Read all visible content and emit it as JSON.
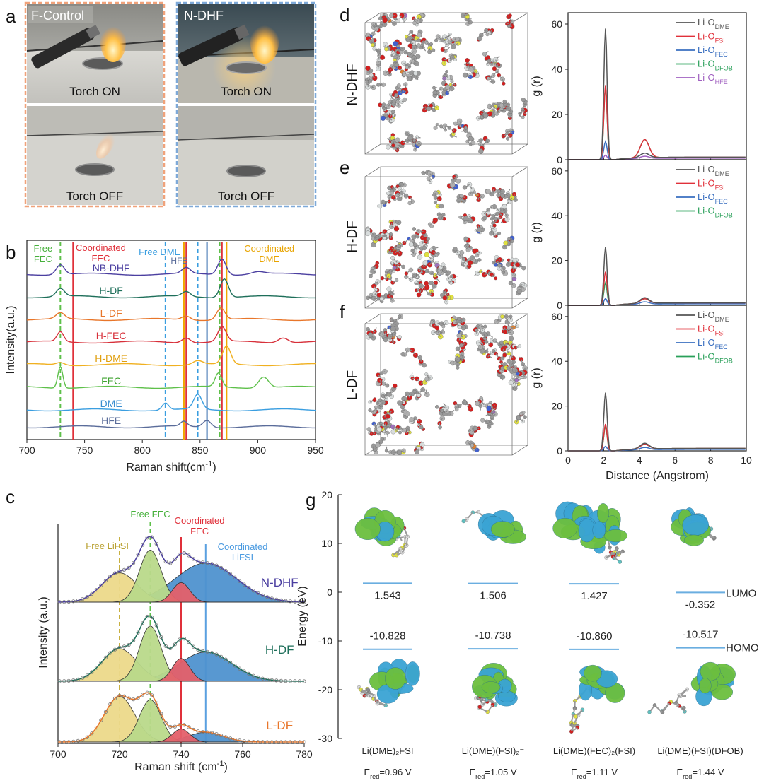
{
  "panels": {
    "a": "a",
    "b": "b",
    "c": "c",
    "d": "d",
    "e": "e",
    "f": "f",
    "g": "g"
  },
  "panel_a": {
    "left_title": "F-Control",
    "right_title": "N-DHF",
    "on_caption": "Torch ON",
    "off_caption": "Torch OFF",
    "left_border_color": "#f0a27a",
    "right_border_color": "#7ea9d8"
  },
  "panel_b": {
    "ylabel": "Intensity(a.u.)",
    "xlabel_main": "Raman shift(cm",
    "xlabel_sup": "-1",
    "xlabel_end": ")",
    "annotations": {
      "free_fec": [
        "Free",
        "FEC"
      ],
      "coord_fec": [
        "Coordinated",
        "FEC"
      ],
      "free_dme": "Free DME",
      "hfe": "HFE",
      "coord_dme": [
        "Coordinated",
        "DME"
      ]
    }
  },
  "panel_c": {
    "ylabel": "Intensity (a.u.)",
    "xlabel_main": "Raman shift (cm",
    "xlabel_sup": "-1",
    "xlabel_end": ")",
    "annotations": {
      "free_lifsi": "Free LiFSI",
      "free_fec": "Free FEC",
      "coord_fec": [
        "Coordinated",
        "FEC"
      ],
      "coord_lifsi": [
        "Coordinated",
        "LiFSI"
      ]
    },
    "component_colors": {
      "free_lifsi": "#ecd98a",
      "free_fec": "#b9d98a",
      "coord_fec": "#e4606a",
      "coord_lifsi": "#4f92cf"
    }
  },
  "panel_md": {
    "labels": [
      "N-DHF",
      "H-DF",
      "L-DF"
    ]
  },
  "panel_rdf": {
    "ylabel": "g (r)",
    "xlabel": "Distance (Angstrom)",
    "legend_prefix": "Li-O",
    "subs": {
      "dme": "DME",
      "fsi": "FSI",
      "fec": "FEC",
      "dfob": "DFOB",
      "hfe": "HFE"
    }
  },
  "panel_g": {
    "ylabel": "Energy (eV)",
    "lumo_label": "LUMO",
    "homo_label": "HOMO",
    "complexes": [
      {
        "name": "Li(DME)₂FSI",
        "lumo": "1.543",
        "homo": "-10.828",
        "ered_prefix": "E",
        "ered_sub": "red",
        "ered_val": "=0.96 V"
      },
      {
        "name": "Li(DME)(FSI)₂⁻",
        "lumo": "1.506",
        "homo": "-10.738",
        "ered_prefix": "E",
        "ered_sub": "red",
        "ered_val": "=1.05 V"
      },
      {
        "name": "Li(DME)(FEC)₂(FSI)",
        "lumo": "1.427",
        "homo": "-10.860",
        "ered_prefix": "E",
        "ered_sub": "red",
        "ered_val": "=1.11 V"
      },
      {
        "name": "Li(DME)(FSI)(DFOB)",
        "lumo": "-0.352",
        "homo": "-10.517",
        "ered_prefix": "E",
        "ered_sub": "red",
        "ered_val": "=1.44 V"
      }
    ],
    "orbital_colors": {
      "positive": "#3aa4d4",
      "negative": "#6cbf3f"
    }
  },
  "chart_data": [
    {
      "id": "b",
      "type": "line",
      "xlabel": "Raman shift(cm-1)",
      "ylabel": "Intensity(a.u.)",
      "xlim": [
        700,
        950
      ],
      "xticks": [
        700,
        750,
        800,
        850,
        900,
        950
      ],
      "vlines": [
        {
          "x": 729,
          "color": "#5ec04a",
          "style": "dashed"
        },
        {
          "x": 740,
          "color": "#e0303a",
          "style": "solid"
        },
        {
          "x": 820,
          "color": "#3a9ee0",
          "style": "dashed"
        },
        {
          "x": 836,
          "color": "#f0a800",
          "style": "solid"
        },
        {
          "x": 838,
          "color": "#e0303a",
          "style": "solid"
        },
        {
          "x": 848,
          "color": "#3a9ee0",
          "style": "dashed"
        },
        {
          "x": 856,
          "color": "#3a6fb0",
          "style": "solid"
        },
        {
          "x": 867,
          "color": "#5ec04a",
          "style": "dashed"
        },
        {
          "x": 869,
          "color": "#e0303a",
          "style": "solid"
        },
        {
          "x": 873,
          "color": "#f0a800",
          "style": "solid"
        }
      ],
      "series": [
        {
          "name": "NB-DHF",
          "color": "#4b3fa0",
          "label_color": "#4b3fa0",
          "peaks": [
            [
              729,
              1.0,
              5
            ],
            [
              838,
              0.6,
              5
            ],
            [
              869,
              1.6,
              5
            ],
            [
              900,
              0.25,
              8
            ]
          ]
        },
        {
          "name": "H-DF",
          "color": "#1e6f5a",
          "label_color": "#1e6f5a",
          "peaks": [
            [
              729,
              0.8,
              5
            ],
            [
              838,
              0.5,
              5
            ],
            [
              871,
              1.9,
              5
            ]
          ]
        },
        {
          "name": "L-DF",
          "color": "#e8762a",
          "label_color": "#e8762a",
          "peaks": [
            [
              729,
              0.6,
              5
            ],
            [
              838,
              0.4,
              5
            ],
            [
              868,
              1.2,
              5
            ]
          ]
        },
        {
          "name": "H-FEC",
          "color": "#d7303a",
          "label_color": "#d7303a",
          "peaks": [
            [
              729,
              1.0,
              4
            ],
            [
              838,
              0.5,
              5
            ],
            [
              869,
              1.5,
              5
            ],
            [
              922,
              0.5,
              6
            ]
          ]
        },
        {
          "name": "H-DME",
          "color": "#f0b020",
          "label_color": "#e0a010",
          "peaks": [
            [
              729,
              0.25,
              5
            ],
            [
              848,
              0.4,
              6
            ],
            [
              873,
              1.8,
              5
            ]
          ]
        },
        {
          "name": "FEC",
          "color": "#5ec04a",
          "label_color": "#3fa330",
          "peaks": [
            [
              729,
              2.2,
              3
            ],
            [
              866,
              1.4,
              4
            ],
            [
              905,
              1.1,
              6
            ]
          ]
        },
        {
          "name": "DME",
          "color": "#3a9ee0",
          "label_color": "#3a8ed0",
          "peaks": [
            [
              820,
              0.7,
              4
            ],
            [
              848,
              1.5,
              5
            ]
          ]
        },
        {
          "name": "HFE",
          "color": "#5a6c9a",
          "label_color": "#5a6c9a",
          "peaks": [
            [
              836,
              0.5,
              4
            ],
            [
              856,
              0.7,
              5
            ]
          ]
        }
      ]
    },
    {
      "id": "c",
      "type": "area",
      "xlabel": "Raman shift (cm-1)",
      "ylabel": "Intensity (a.u.)",
      "xlim": [
        700,
        780
      ],
      "xticks": [
        700,
        720,
        740,
        760,
        780
      ],
      "vlines": [
        {
          "x": 720,
          "color": "#c8b040",
          "style": "dashed"
        },
        {
          "x": 730,
          "color": "#5ec04a",
          "style": "dashed"
        },
        {
          "x": 740,
          "color": "#e0303a",
          "style": "solid"
        },
        {
          "x": 748,
          "color": "#5aa0e0",
          "style": "solid"
        }
      ],
      "series": [
        {
          "name": "N-DHF",
          "color": "#4b3fa0",
          "components": [
            [
              720,
              0.9,
              8
            ],
            [
              730,
              1.6,
              5
            ],
            [
              740,
              0.6,
              4
            ],
            [
              748,
              1.2,
              14
            ]
          ]
        },
        {
          "name": "H-DF",
          "color": "#1e6f5a",
          "components": [
            [
              720,
              1.0,
              8
            ],
            [
              730,
              1.7,
              5
            ],
            [
              740,
              0.7,
              4
            ],
            [
              748,
              0.9,
              12
            ]
          ]
        },
        {
          "name": "L-DF",
          "color": "#e8762a",
          "components": [
            [
              720,
              1.4,
              7
            ],
            [
              730,
              1.3,
              5
            ],
            [
              740,
              0.4,
              4
            ],
            [
              748,
              0.3,
              8
            ]
          ]
        }
      ]
    },
    {
      "id": "d",
      "type": "line",
      "xlabel": "",
      "ylabel": "g (r)",
      "xlim": [
        0,
        10
      ],
      "ylim": [
        0,
        65
      ],
      "yticks": [
        0,
        20,
        40,
        60
      ],
      "series": [
        {
          "name": "Li-O DME",
          "sub": "DME",
          "color": "#555555",
          "peak1": 58,
          "peak2": 2
        },
        {
          "name": "Li-O FSI",
          "sub": "FSI",
          "color": "#e0303a",
          "peak1": 33,
          "peak2": 8
        },
        {
          "name": "Li-O FEC",
          "sub": "FEC",
          "color": "#3a6fc0",
          "peak1": 8,
          "peak2": 2
        },
        {
          "name": "Li-O DFOB",
          "sub": "DFOB",
          "color": "#2aa05a",
          "peak1": 32,
          "peak2": 8
        },
        {
          "name": "Li-O HFE",
          "sub": "HFE",
          "color": "#a060c0",
          "peak1": 2,
          "peak2": 1
        }
      ]
    },
    {
      "id": "e",
      "type": "line",
      "xlabel": "",
      "ylabel": "g (r)",
      "xlim": [
        0,
        10
      ],
      "ylim": [
        0,
        65
      ],
      "yticks": [
        0,
        20,
        40,
        60
      ],
      "series": [
        {
          "name": "Li-O DME",
          "sub": "DME",
          "color": "#555555",
          "peak1": 26,
          "peak2": 2.5
        },
        {
          "name": "Li-O FSI",
          "sub": "FSI",
          "color": "#e0303a",
          "peak1": 15,
          "peak2": 2
        },
        {
          "name": "Li-O FEC",
          "sub": "FEC",
          "color": "#3a6fc0",
          "peak1": 3,
          "peak2": 1
        },
        {
          "name": "Li-O DFOB",
          "sub": "DFOB",
          "color": "#2aa05a",
          "peak1": 10,
          "peak2": 2
        }
      ]
    },
    {
      "id": "f",
      "type": "line",
      "xlabel": "Distance (Angstrom)",
      "ylabel": "g (r)",
      "xlim": [
        0,
        10
      ],
      "ylim": [
        0,
        65
      ],
      "xticks": [
        0,
        2,
        4,
        6,
        8,
        10
      ],
      "yticks": [
        0,
        20,
        40,
        60
      ],
      "series": [
        {
          "name": "Li-O DME",
          "sub": "DME",
          "color": "#555555",
          "peak1": 26,
          "peak2": 2.5
        },
        {
          "name": "Li-O FSI",
          "sub": "FSI",
          "color": "#e0303a",
          "peak1": 12,
          "peak2": 2
        },
        {
          "name": "Li-O FEC",
          "sub": "FEC",
          "color": "#3a6fc0",
          "peak1": 2,
          "peak2": 1
        },
        {
          "name": "Li-O DFOB",
          "sub": "DFOB",
          "color": "#2aa05a",
          "peak1": 11,
          "peak2": 2
        }
      ]
    },
    {
      "id": "g",
      "type": "scatter",
      "ylabel": "Energy (eV)",
      "ylim": [
        -30,
        20
      ],
      "yticks": [
        20,
        10,
        0,
        -10,
        -20,
        -30
      ],
      "categories": [
        "Li(DME)2FSI",
        "Li(DME)(FSI)2-",
        "Li(DME)(FEC)2(FSI)",
        "Li(DME)(FSI)(DFOB)"
      ],
      "series": [
        {
          "name": "LUMO",
          "values": [
            1.543,
            1.506,
            1.427,
            -0.352
          ]
        },
        {
          "name": "HOMO",
          "values": [
            -10.828,
            -10.738,
            -10.86,
            -10.517
          ]
        }
      ]
    }
  ]
}
